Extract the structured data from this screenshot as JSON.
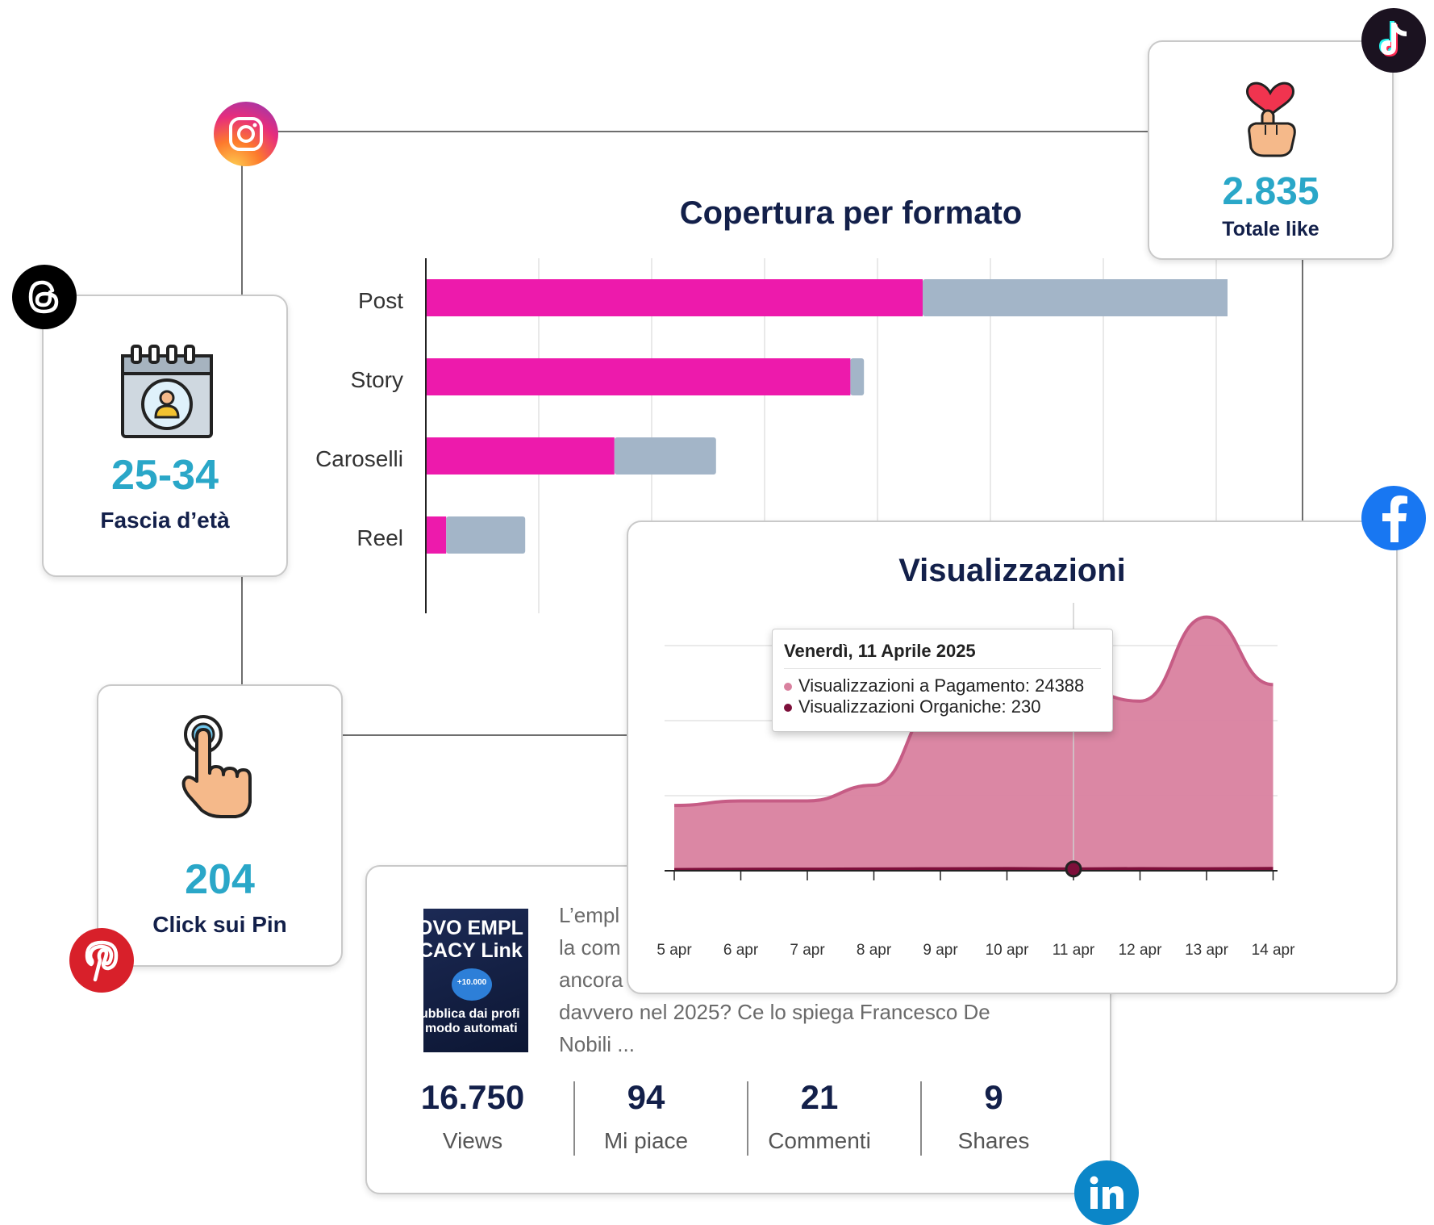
{
  "cards": {
    "likes": {
      "value": "2.835",
      "label": "Totale like"
    },
    "age": {
      "value": "25-34",
      "label": "Fascia d’età"
    },
    "pin": {
      "value": "204",
      "label": "Click sui Pin"
    }
  },
  "post": {
    "text_lines": [
      "L’empl",
      "la com",
      "ancora",
      "davvero nel 2025? Ce lo spiega Francesco De",
      "Nobili ..."
    ],
    "thumb_lines": [
      "OVO EMPL",
      "CACY Link",
      "+10.000",
      "ubblica dai profi",
      "modo automati"
    ],
    "stats": [
      {
        "value": "16.750",
        "label": "Views"
      },
      {
        "value": "94",
        "label": "Mi piace"
      },
      {
        "value": "21",
        "label": "Commenti"
      },
      {
        "value": "9",
        "label": "Shares"
      }
    ]
  },
  "colors": {
    "accent_blue": "#2aa7c8",
    "navy": "#13204a",
    "paid": "#ed1aac",
    "organic": "#a3b5c8",
    "area_paid": "#d9819f",
    "area_line": "#c65c85",
    "organic_line": "#7d0f3a"
  },
  "icons": [
    "tiktok-icon",
    "instagram-icon",
    "threads-icon",
    "facebook-icon",
    "pinterest-icon",
    "linkedin-icon",
    "heart-hand-icon",
    "calendar-user-icon",
    "tap-hand-icon"
  ],
  "chart_data": [
    {
      "type": "bar",
      "orientation": "horizontal",
      "stacked": true,
      "title": "Copertura per formato",
      "categories": [
        "Post",
        "Story",
        "Caroselli",
        "Reel"
      ],
      "series": [
        {
          "values": [
            4400,
            3760,
            1670,
            180
          ]
        },
        {
          "values": [
            2730,
            120,
            900,
            700
          ]
        }
      ],
      "xlim": [
        0,
        8000
      ],
      "grid": true
    },
    {
      "type": "area",
      "title": "Visualizzazioni",
      "x": [
        "5 apr",
        "6 apr",
        "7 apr",
        "8 apr",
        "9 apr",
        "10 apr",
        "11 apr",
        "12 apr",
        "13 apr",
        "14 apr"
      ],
      "series": [
        {
          "name": "Visualizzazioni a Pagamento",
          "values": [
            8700,
            9300,
            9300,
            11400,
            22600,
            22200,
            24388,
            22600,
            33800,
            24800
          ]
        },
        {
          "name": "Visualizzazioni Organiche",
          "values": [
            150,
            190,
            200,
            230,
            260,
            280,
            230,
            270,
            250,
            300
          ]
        }
      ],
      "ylim": [
        0,
        40000
      ],
      "grid": true,
      "tooltip": {
        "title": "Venerdì, 11 Aprile 2025",
        "lines": [
          "Visualizzazioni a Pagamento: 24388",
          "Visualizzazioni Organiche: 230"
        ]
      }
    }
  ]
}
